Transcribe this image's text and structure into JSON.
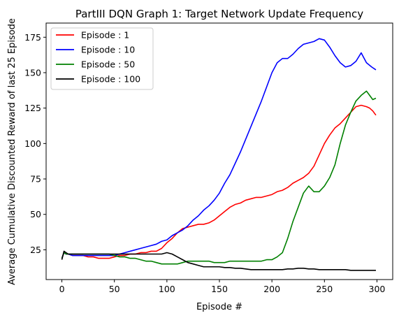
{
  "chart_data": {
    "type": "line",
    "title": "PartIII DQN Graph 1: Target Network Update Frequency",
    "xlabel": "Episode #",
    "ylabel": "Average Cumulative Discounted Reward of last 25 Episode",
    "xlim": [
      -15,
      315
    ],
    "ylim": [
      4,
      185
    ],
    "xticks": [
      0,
      50,
      100,
      150,
      200,
      250,
      300
    ],
    "yticks": [
      25,
      50,
      75,
      100,
      125,
      150,
      175
    ],
    "grid": false,
    "legend_position": "top-left",
    "series": [
      {
        "name": "Episode : 1",
        "color": "#ff0000",
        "x": [
          0,
          2,
          4,
          6,
          10,
          15,
          20,
          25,
          30,
          35,
          40,
          45,
          50,
          55,
          60,
          65,
          70,
          75,
          80,
          85,
          90,
          95,
          100,
          105,
          110,
          115,
          120,
          125,
          130,
          135,
          140,
          145,
          150,
          155,
          160,
          165,
          170,
          175,
          180,
          185,
          190,
          195,
          200,
          205,
          210,
          215,
          220,
          225,
          230,
          235,
          240,
          245,
          250,
          255,
          260,
          265,
          270,
          275,
          280,
          285,
          290,
          293,
          296,
          299
        ],
        "y": [
          19,
          23,
          22,
          22,
          21,
          21,
          21,
          20,
          20,
          19,
          19,
          19,
          20,
          21,
          21,
          22,
          22,
          23,
          23,
          24,
          24,
          26,
          30,
          33,
          37,
          40,
          41,
          42,
          43,
          43,
          44,
          46,
          49,
          52,
          55,
          57,
          58,
          60,
          61,
          62,
          62,
          63,
          64,
          66,
          67,
          69,
          72,
          74,
          76,
          79,
          84,
          92,
          100,
          106,
          111,
          114,
          118,
          122,
          126,
          127,
          126,
          125,
          123,
          120
        ]
      },
      {
        "name": "Episode : 10",
        "color": "#0000ff",
        "x": [
          0,
          2,
          4,
          6,
          10,
          15,
          20,
          25,
          30,
          35,
          40,
          45,
          50,
          55,
          60,
          65,
          70,
          75,
          80,
          85,
          90,
          95,
          100,
          105,
          110,
          115,
          120,
          125,
          130,
          135,
          140,
          145,
          150,
          155,
          160,
          165,
          170,
          175,
          180,
          185,
          190,
          195,
          200,
          205,
          210,
          215,
          220,
          225,
          230,
          235,
          240,
          245,
          250,
          255,
          260,
          265,
          270,
          275,
          280,
          285,
          290,
          295,
          299
        ],
        "y": [
          19,
          23,
          22,
          22,
          21,
          21,
          21,
          21,
          21,
          21,
          21,
          21,
          21,
          22,
          23,
          24,
          25,
          26,
          27,
          28,
          29,
          31,
          32,
          35,
          37,
          39,
          42,
          46,
          49,
          53,
          56,
          60,
          65,
          72,
          78,
          86,
          94,
          103,
          112,
          121,
          130,
          140,
          150,
          157,
          160,
          160,
          163,
          167,
          170,
          171,
          172,
          174,
          173,
          168,
          162,
          157,
          154,
          155,
          158,
          164,
          157,
          154,
          152
        ]
      },
      {
        "name": "Episode : 50",
        "color": "#008000",
        "x": [
          0,
          2,
          4,
          6,
          10,
          15,
          20,
          25,
          30,
          35,
          40,
          45,
          50,
          55,
          60,
          65,
          70,
          75,
          80,
          85,
          90,
          95,
          100,
          105,
          110,
          115,
          120,
          125,
          130,
          135,
          140,
          145,
          150,
          155,
          160,
          165,
          170,
          175,
          180,
          185,
          190,
          195,
          200,
          205,
          210,
          215,
          220,
          225,
          230,
          235,
          240,
          245,
          250,
          255,
          260,
          265,
          270,
          275,
          280,
          285,
          290,
          293,
          296,
          299
        ],
        "y": [
          19,
          23,
          22,
          22,
          22,
          22,
          22,
          22,
          22,
          22,
          22,
          22,
          21,
          20,
          20,
          19,
          19,
          18,
          17,
          17,
          16,
          15,
          15,
          15,
          15,
          16,
          17,
          17,
          17,
          17,
          17,
          16,
          16,
          16,
          17,
          17,
          17,
          17,
          17,
          17,
          17,
          18,
          18,
          20,
          23,
          33,
          45,
          55,
          65,
          70,
          66,
          66,
          70,
          76,
          85,
          100,
          113,
          122,
          130,
          134,
          137,
          134,
          131,
          132
        ]
      },
      {
        "name": "Episode : 100",
        "color": "#000000",
        "x": [
          0,
          2,
          4,
          6,
          10,
          15,
          20,
          25,
          30,
          35,
          40,
          45,
          50,
          55,
          60,
          65,
          70,
          75,
          80,
          85,
          90,
          95,
          100,
          105,
          110,
          115,
          120,
          125,
          130,
          135,
          140,
          145,
          150,
          155,
          160,
          165,
          170,
          175,
          180,
          185,
          190,
          195,
          200,
          205,
          210,
          215,
          220,
          225,
          230,
          235,
          240,
          245,
          250,
          255,
          260,
          265,
          270,
          275,
          280,
          285,
          290,
          295,
          299
        ],
        "y": [
          18,
          24,
          23,
          22,
          22,
          22,
          22,
          22,
          22,
          22,
          22,
          22,
          22,
          22,
          22,
          22,
          22,
          22,
          22,
          22,
          22,
          22,
          23,
          22,
          20,
          18,
          16,
          15,
          14,
          13,
          13,
          13,
          13,
          12.5,
          12.5,
          12,
          12,
          11.5,
          11,
          11,
          11,
          11,
          11,
          11,
          11,
          11.5,
          11.5,
          12,
          12,
          11.5,
          11.5,
          11,
          11,
          11,
          11,
          11,
          11,
          10.5,
          10.5,
          10.5,
          10.5,
          10.5,
          10.5
        ]
      }
    ]
  }
}
